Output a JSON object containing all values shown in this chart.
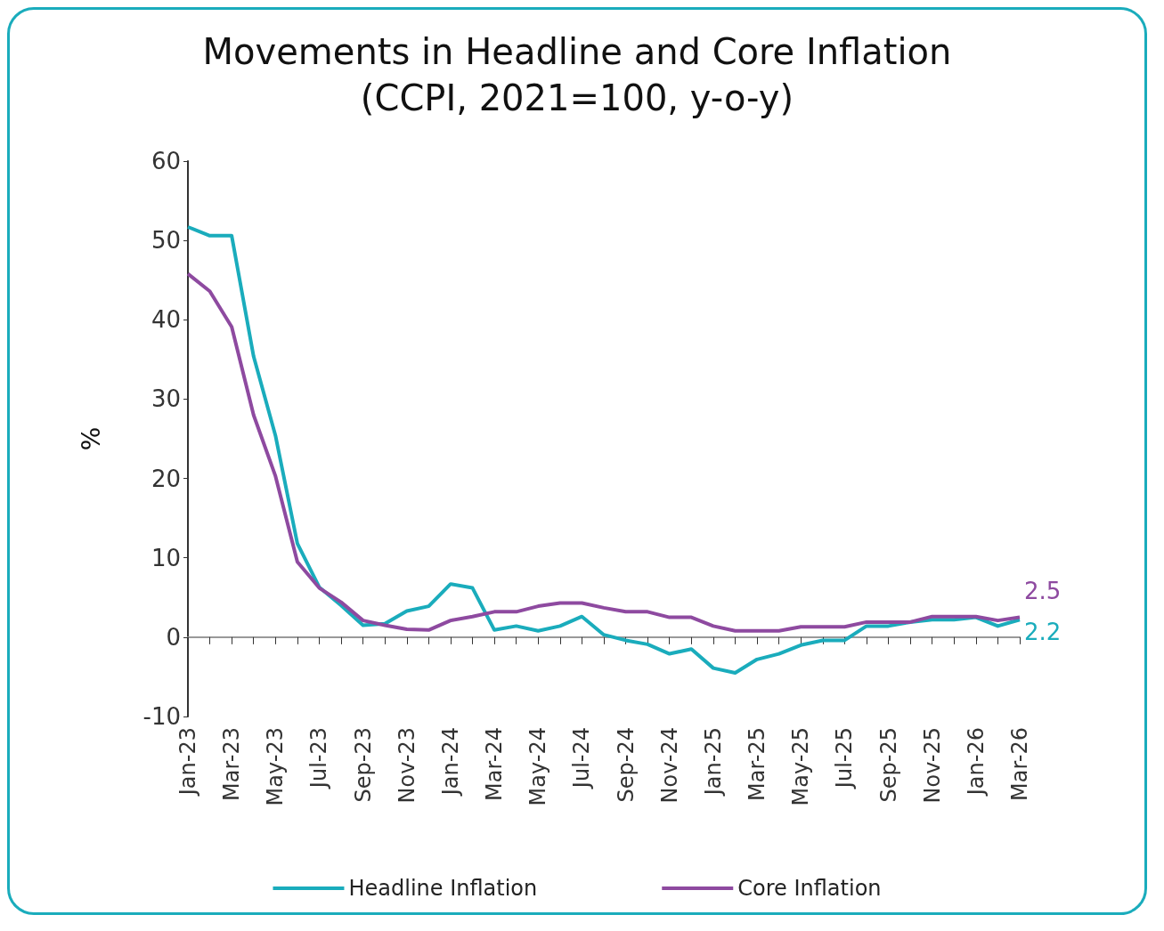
{
  "chart_data": {
    "type": "line",
    "title": "Movements in Headline and Core Inflation",
    "subtitle": "(CCPI, 2021=100, y-o-y)",
    "ylabel": "%",
    "categories": [
      "Jan-23",
      null,
      "Mar-23",
      null,
      "May-23",
      null,
      "Jul-23",
      null,
      "Sep-23",
      null,
      "Nov-23",
      null,
      "Jan-24",
      null,
      "Mar-24",
      null,
      "May-24",
      null,
      "Jul-24",
      null,
      "Sep-24",
      null,
      "Nov-24",
      null,
      "Jan-25",
      null,
      "Mar-25",
      null,
      "May-25",
      null,
      "Jul-25",
      null,
      "Sep-25",
      null,
      "Nov-25",
      null,
      "Jan-26",
      null,
      "Mar-26"
    ],
    "series": [
      {
        "name": "Headline Inflation",
        "color": "#1aacbc",
        "values": [
          51.7,
          50.6,
          50.6,
          35.4,
          25.4,
          11.8,
          6.3,
          4.0,
          1.5,
          1.7,
          3.3,
          3.9,
          6.7,
          6.2,
          0.9,
          1.4,
          0.8,
          1.4,
          2.6,
          0.3,
          -0.4,
          -0.9,
          -2.1,
          -1.5,
          -3.9,
          -4.5,
          -2.8,
          -2.1,
          -1.0,
          -0.4,
          -0.4,
          1.4,
          1.4,
          1.9,
          2.2,
          2.2,
          2.5,
          1.4,
          2.2
        ],
        "value_labels": [
          null,
          null,
          null,
          null,
          null,
          null,
          null,
          null,
          null,
          null,
          null,
          null,
          null,
          null,
          null,
          null,
          null,
          null,
          null,
          null,
          null,
          null,
          null,
          null,
          null,
          null,
          null,
          null,
          null,
          null,
          null,
          null,
          null,
          null,
          null,
          null,
          null,
          null,
          "2.2"
        ]
      },
      {
        "name": "Core Inflation",
        "color": "#8e4aa0",
        "values": [
          45.8,
          43.6,
          39.1,
          28.0,
          20.3,
          9.5,
          6.2,
          4.4,
          2.1,
          1.5,
          1.0,
          0.9,
          2.1,
          2.6,
          3.2,
          3.2,
          3.9,
          4.3,
          4.3,
          3.7,
          3.2,
          3.2,
          2.5,
          2.5,
          1.4,
          0.8,
          0.8,
          0.8,
          1.3,
          1.3,
          1.3,
          1.9,
          1.9,
          1.9,
          2.6,
          2.6,
          2.6,
          2.1,
          2.5
        ],
        "value_labels": [
          null,
          null,
          null,
          null,
          null,
          null,
          null,
          null,
          null,
          null,
          null,
          null,
          null,
          null,
          null,
          null,
          null,
          null,
          null,
          null,
          null,
          null,
          null,
          null,
          null,
          null,
          null,
          null,
          null,
          null,
          null,
          null,
          null,
          null,
          null,
          null,
          null,
          null,
          "2.5"
        ]
      }
    ],
    "ylim": [
      -10,
      60
    ],
    "yticks": [
      -10,
      0,
      10,
      20,
      30,
      40,
      50,
      60
    ],
    "legend": "bottom",
    "marker": "none",
    "line_style": "solid"
  }
}
